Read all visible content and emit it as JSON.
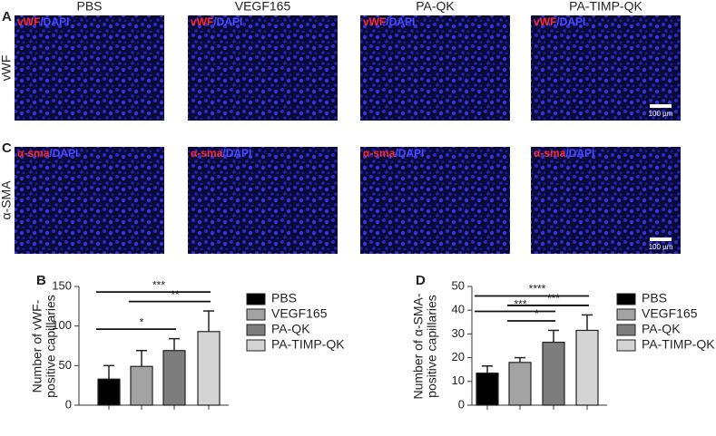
{
  "figure": {
    "panel_labels": [
      "A",
      "C"
    ],
    "columns": [
      "PBS",
      "VEGF165",
      "PA-QK",
      "PA-TIMP-QK"
    ],
    "rows": [
      {
        "label": "vWF",
        "stain": "vWF",
        "counter": "/DAPI"
      },
      {
        "label": "α-SMA",
        "stain": "α-sma",
        "counter": "/DAPI"
      }
    ],
    "scale_bar": "100 µm"
  },
  "chart_data": [
    {
      "type": "bar",
      "panel": "B",
      "ylabel": [
        "Number of vWF-",
        "positive capillaries"
      ],
      "series": [
        {
          "name": "PBS",
          "color": "#000000",
          "values": [
            33
          ],
          "errors": [
            17
          ]
        },
        {
          "name": "VEGF165",
          "color": "#a3a3a3",
          "values": [
            49
          ],
          "errors": [
            20
          ]
        },
        {
          "name": "PA-QK",
          "color": "#7d7d7d",
          "values": [
            69
          ],
          "errors": [
            15
          ]
        },
        {
          "name": "PA-TIMP-QK",
          "color": "#d4d4d4",
          "values": [
            93
          ],
          "errors": [
            26
          ]
        }
      ],
      "ylim": [
        0,
        150
      ],
      "yticks": [
        0,
        50,
        100,
        150
      ],
      "significance": [
        {
          "text": "***",
          "from": 0,
          "to": 3
        },
        {
          "text": "**",
          "from": 1,
          "to": 3
        },
        {
          "text": "*",
          "from": 0,
          "to": 2
        }
      ]
    },
    {
      "type": "bar",
      "panel": "D",
      "ylabel": [
        "Number of α-SMA-",
        "positive capillaries"
      ],
      "series": [
        {
          "name": "PBS",
          "color": "#000000",
          "values": [
            13.5
          ],
          "errors": [
            3
          ]
        },
        {
          "name": "VEGF165",
          "color": "#a3a3a3",
          "values": [
            18
          ],
          "errors": [
            2
          ]
        },
        {
          "name": "PA-QK",
          "color": "#7d7d7d",
          "values": [
            26.5
          ],
          "errors": [
            5
          ]
        },
        {
          "name": "PA-TIMP-QK",
          "color": "#d4d4d4",
          "values": [
            31.5
          ],
          "errors": [
            6.5
          ]
        }
      ],
      "ylim": [
        0,
        50
      ],
      "yticks": [
        0,
        10,
        20,
        30,
        40,
        50
      ],
      "significance": [
        {
          "text": "****",
          "from": 0,
          "to": 3
        },
        {
          "text": "***",
          "from": 1,
          "to": 3
        },
        {
          "text": "***",
          "from": 0,
          "to": 2
        },
        {
          "text": "*",
          "from": 1,
          "to": 2
        }
      ]
    }
  ]
}
